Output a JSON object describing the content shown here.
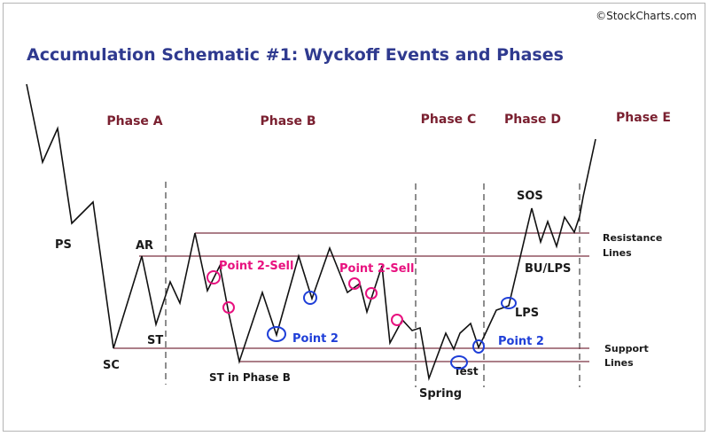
{
  "watermark": "©StockCharts.com",
  "title": "Accumulation Schematic #1: Wyckoff Events and Phases",
  "phases": {
    "a": "Phase A",
    "b": "Phase B",
    "c": "Phase C",
    "d": "Phase D",
    "e": "Phase E"
  },
  "events": {
    "ps": "PS",
    "ar": "AR",
    "st": "ST",
    "sc": "SC",
    "st_phase_b": "ST in Phase B",
    "spring": "Spring",
    "test": "Test",
    "sos": "SOS",
    "bu_lps": "BU/LPS",
    "lps": "LPS"
  },
  "annotations": {
    "point2_sell_1": "Point 2-Sell",
    "point2_sell_2": "Point 2-Sell",
    "point2_a": "Point 2",
    "point2_b": "Point 2"
  },
  "side_labels": {
    "resistance_1": "Resistance",
    "resistance_2": "Lines",
    "support_1": "Support",
    "support_2": "Lines"
  },
  "colors": {
    "title": "#2f3a8f",
    "phase": "#7a2030",
    "range_lines": "#7a3040",
    "sell_markers": "#e8117f",
    "buy_markers": "#1f3fd8",
    "price": "#111111"
  }
}
